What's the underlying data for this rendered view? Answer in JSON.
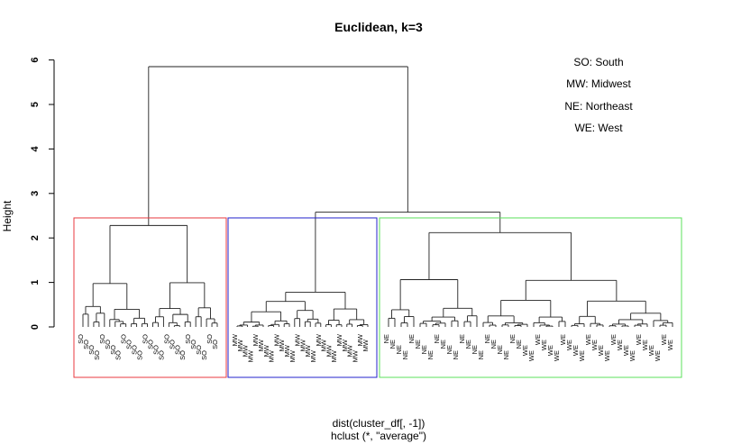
{
  "chart_data": {
    "type": "dendrogram",
    "title": "Euclidean, k=3",
    "xlabel": "dist(cluster_df[, -1])",
    "sublabel": "hclust (*, \"average\")",
    "ylabel": "Height",
    "ylim": [
      0,
      6
    ],
    "yticks": [
      "0",
      "1",
      "2",
      "3",
      "4",
      "5",
      "6"
    ],
    "legend": [
      "SO: South",
      "MW: Midwest",
      "NE: Northeast",
      "WE: West"
    ],
    "legend_position": "top-right",
    "root_height": 5.85,
    "clusters": [
      {
        "name": "1",
        "color": "#e8393f",
        "rect_height": 2.45,
        "merge_height": 2.28,
        "leaves": [
          "SO",
          "SO",
          "SO",
          "SO",
          "SO",
          "SO",
          "SO",
          "SO",
          "SO",
          "SO",
          "SO",
          "SO",
          "SO",
          "SO",
          "SO",
          "SO",
          "SO",
          "SO",
          "SO",
          "SO",
          "SO",
          "SO",
          "SO",
          "SO",
          "SO",
          "SO"
        ]
      },
      {
        "name": "2",
        "color": "#2323cc",
        "rect_height": 2.45,
        "merge_height": 0.78,
        "leaves": [
          "MW",
          "MW",
          "MW",
          "MW",
          "MW",
          "MW",
          "MW",
          "MW",
          "MW",
          "MW",
          "MW",
          "MW",
          "MW",
          "MW",
          "MW",
          "MW",
          "MW",
          "MW",
          "MW",
          "MW",
          "MW",
          "MW",
          "MW",
          "MW",
          "MW",
          "MW"
        ]
      },
      {
        "name": "3",
        "color": "#5be05b",
        "rect_height": 2.45,
        "merge_height": 2.12,
        "leaves": [
          "NE",
          "NE",
          "NE",
          "NE",
          "NE",
          "NE",
          "NE",
          "NE",
          "NE",
          "NE",
          "NE",
          "NE",
          "NE",
          "NE",
          "NE",
          "NE",
          "NE",
          "NE",
          "NE",
          "NE",
          "NE",
          "NE",
          "WE",
          "WE",
          "WE",
          "WE",
          "WE",
          "WE",
          "WE",
          "WE",
          "WE",
          "WE",
          "WE",
          "WE",
          "WE",
          "WE",
          "WE",
          "WE",
          "WE",
          "WE",
          "WE",
          "WE",
          "WE",
          "WE",
          "WE",
          "WE"
        ]
      }
    ],
    "merge_2_3_height": 2.58
  }
}
